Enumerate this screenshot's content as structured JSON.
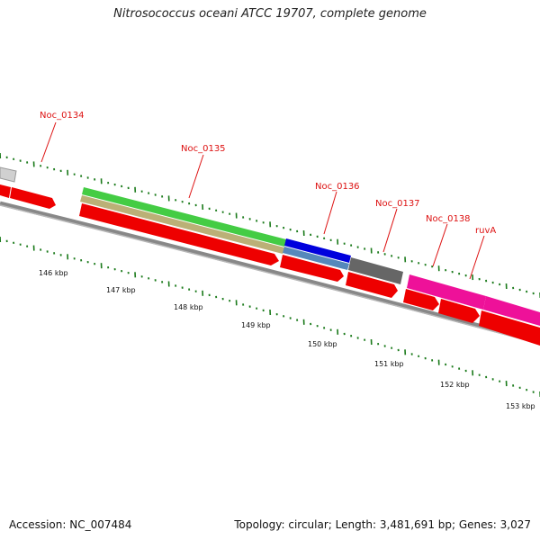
{
  "title": "Nitrosococcus oceani ATCC 19707, complete genome",
  "footer": {
    "accession": "Accession: NC_007484",
    "summary": "Topology: circular; Length: 3,481,691 bp; Genes: 3,027"
  },
  "colors": {
    "gene_label": "#dd1111",
    "tick": "#1a7a1a",
    "backbone": "#888888",
    "cds_red": "#ee0000",
    "gray_feature": "#cccccc",
    "green_feature": "#44cc44",
    "tan_feature": "#bbb077",
    "blue_feature": "#0000dd",
    "steelblue_feature": "#5588bb",
    "darkgray_feature": "#666666",
    "pink_feature": "#ee1199"
  },
  "scale_labels": [
    "146 kbp",
    "147 kbp",
    "148 kbp",
    "149 kbp",
    "150 kbp",
    "151 kbp",
    "152 kbp",
    "153 kbp"
  ],
  "gene_labels": [
    "Noc_0134",
    "Noc_0135",
    "Noc_0136",
    "Noc_0137",
    "Noc_0138",
    "ruvA"
  ]
}
